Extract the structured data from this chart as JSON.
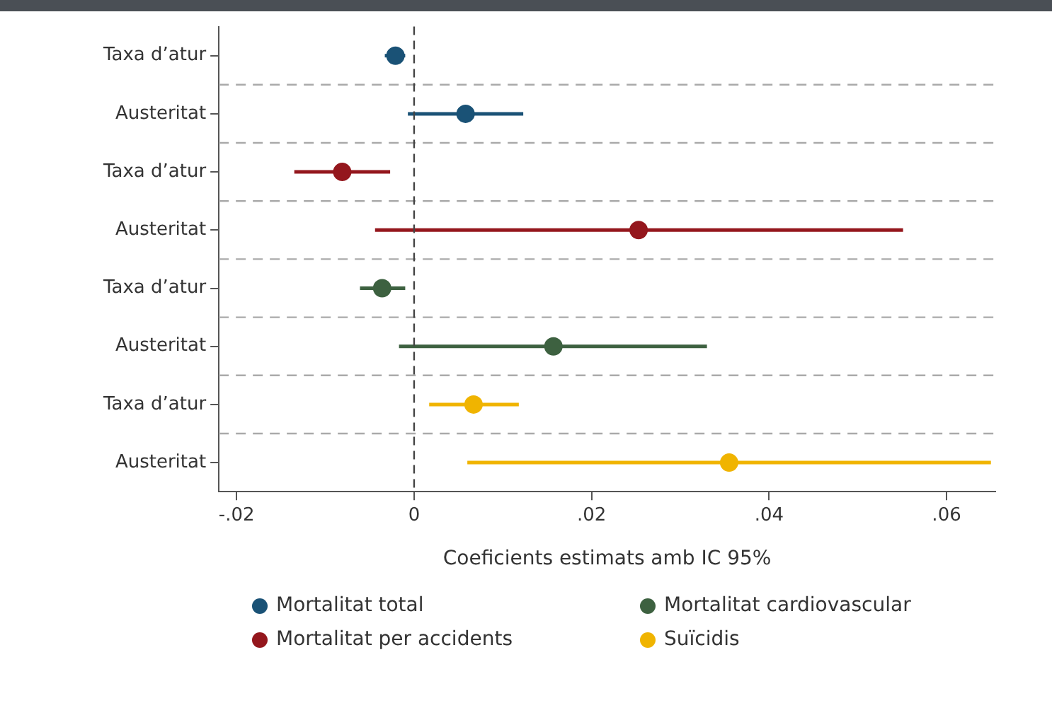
{
  "chart_data": {
    "type": "scatter",
    "orientation": "horizontal",
    "xlabel": "Coeficients estimats amb IC 95%",
    "categories": [
      "Taxa d’atur",
      "Austeritat",
      "Taxa d’atur",
      "Austeritat",
      "Taxa d’atur",
      "Austeritat",
      "Taxa d’atur",
      "Austeritat"
    ],
    "xlim": [
      -0.022,
      0.0655
    ],
    "xticks": [
      {
        "value": -0.02,
        "label": "-.02"
      },
      0,
      {
        "value": 0.02,
        "label": ".02"
      },
      {
        "value": 0.04,
        "label": ".04"
      },
      {
        "value": 0.06,
        "label": ".06"
      }
    ],
    "series": [
      {
        "name": "Mortalitat total",
        "color": "#1a5276",
        "values": [
          -0.0021,
          0.0058,
          null,
          null,
          null,
          null,
          null,
          null
        ],
        "errors": [
          [
            -0.0033,
            -0.001
          ],
          [
            -0.0007,
            0.0123
          ],
          null,
          null,
          null,
          null,
          null,
          null
        ]
      },
      {
        "name": "Mortalitat per accidents",
        "color": "#94171d",
        "values": [
          null,
          null,
          -0.0081,
          0.0253,
          null,
          null,
          null,
          null
        ],
        "errors": [
          null,
          null,
          [
            -0.0135,
            -0.0027
          ],
          [
            -0.0044,
            0.0551
          ],
          null,
          null,
          null,
          null
        ]
      },
      {
        "name": "Mortalitat cardiovascular",
        "color": "#3d6140",
        "values": [
          null,
          null,
          null,
          null,
          -0.0036,
          0.0157,
          null,
          null
        ],
        "errors": [
          null,
          null,
          null,
          null,
          [
            -0.0061,
            -0.001
          ],
          [
            -0.0017,
            0.033
          ],
          null,
          null
        ]
      },
      {
        "name": "Suïcidis",
        "color": "#f0b400",
        "values": [
          null,
          null,
          null,
          null,
          null,
          null,
          0.0067,
          0.0355
        ],
        "errors": [
          null,
          null,
          null,
          null,
          null,
          null,
          [
            0.0017,
            0.0118
          ],
          [
            0.006,
            0.065
          ]
        ]
      }
    ],
    "ref_lines": [
      {
        "axis": "x",
        "value": 0,
        "color": "#444444",
        "line_style": "dashed"
      }
    ],
    "grid": "y",
    "legend": "bottom",
    "marker": "circle"
  }
}
